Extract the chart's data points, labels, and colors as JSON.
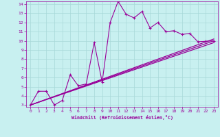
{
  "xlabel": "Windchill (Refroidissement éolien,°C)",
  "bg_color": "#c8f0f0",
  "line_color": "#990099",
  "grid_color": "#a8d8d8",
  "xlim": [
    -0.5,
    23.5
  ],
  "ylim": [
    2.8,
    14.3
  ],
  "xticks": [
    0,
    1,
    2,
    3,
    4,
    5,
    6,
    7,
    8,
    9,
    10,
    11,
    12,
    13,
    14,
    15,
    16,
    17,
    18,
    19,
    20,
    21,
    22,
    23
  ],
  "yticks": [
    3,
    4,
    5,
    6,
    7,
    8,
    9,
    10,
    11,
    12,
    13,
    14
  ],
  "line_straight1": {
    "x": [
      0,
      23
    ],
    "y": [
      3.0,
      10.0
    ]
  },
  "line_straight2": {
    "x": [
      0,
      23
    ],
    "y": [
      3.0,
      10.2
    ]
  },
  "line_straight3": {
    "x": [
      0,
      23
    ],
    "y": [
      3.0,
      9.8
    ]
  },
  "line_zigzag": {
    "x": [
      0,
      1,
      2,
      3,
      4,
      5,
      6,
      7,
      8,
      9,
      10,
      11,
      12,
      13,
      14,
      15,
      16,
      17,
      18,
      19,
      20,
      21,
      22,
      23
    ],
    "y": [
      3.0,
      4.5,
      4.5,
      3.0,
      3.5,
      6.3,
      5.1,
      5.3,
      9.8,
      5.5,
      12.0,
      14.3,
      12.9,
      12.5,
      13.2,
      11.4,
      12.0,
      11.0,
      11.1,
      10.7,
      10.8,
      9.9,
      9.95,
      10.0
    ]
  }
}
